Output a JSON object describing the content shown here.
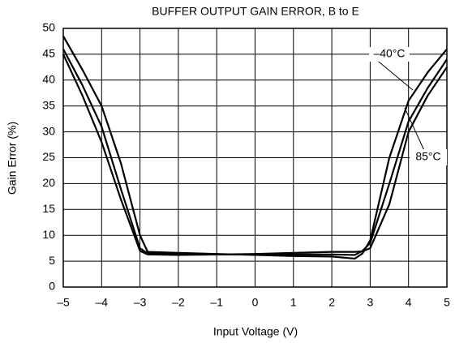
{
  "chart_data": {
    "type": "line",
    "title": "BUFFER OUTPUT GAIN ERROR, B to E",
    "x_label": "Input Voltage (V)",
    "y_label": "Gain Error (%)",
    "x": [
      -5,
      -4.5,
      -4,
      -3.5,
      -3,
      -2.8,
      -2,
      -1,
      0,
      1,
      2,
      2.6,
      2.8,
      3,
      3.5,
      4,
      4.5,
      5
    ],
    "series": [
      {
        "color": "#000000",
        "values": [
          48.5,
          42,
          35,
          24,
          10,
          6.8,
          6.6,
          6.4,
          6.2,
          6.0,
          5.9,
          5.5,
          6.5,
          9,
          25,
          36,
          41.5,
          46
        ]
      },
      {
        "color": "#000000",
        "values": [
          46,
          39,
          31,
          19,
          7.5,
          6.5,
          6.4,
          6.3,
          6.3,
          6.3,
          6.3,
          6.2,
          7,
          8.5,
          20,
          32,
          38.5,
          44
        ]
      },
      {
        "color": "#000000",
        "values": [
          45,
          37,
          28,
          17,
          7,
          6.3,
          6.2,
          6.3,
          6.4,
          6.6,
          6.8,
          6.8,
          6.9,
          7.5,
          16,
          30,
          37,
          42.5
        ]
      }
    ],
    "annotations": [
      "–40°C",
      "85°C"
    ],
    "xlim": [
      -5,
      5
    ],
    "xticks": [
      {
        "value": -5,
        "label": "–5"
      },
      {
        "value": -4,
        "label": "–4"
      },
      {
        "value": -3,
        "label": "–3"
      },
      {
        "value": -2,
        "label": "–2"
      },
      {
        "value": -1,
        "label": "–1"
      },
      0,
      1,
      2,
      3,
      4,
      5
    ],
    "ylim": [
      0,
      50
    ],
    "yticks": [
      0,
      5,
      10,
      15,
      20,
      25,
      30,
      35,
      40,
      45,
      50
    ],
    "grid": true
  }
}
